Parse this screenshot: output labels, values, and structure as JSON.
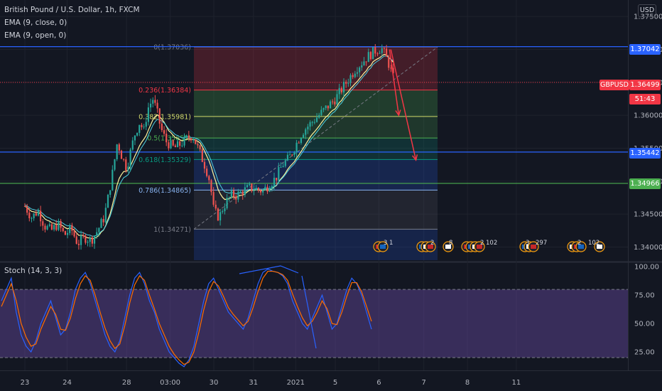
{
  "header": {
    "title": "British Pound / U.S. Dollar, 1h, FXCM",
    "indicators": [
      "EMA (9, close, 0)",
      "EMA (9, open, 0)"
    ],
    "currency": "USD"
  },
  "badges": {
    "price_line_1": "1.37042",
    "symbol": "GBPUSD",
    "last_price": "1.36499",
    "countdown": "51:43",
    "price_line_2": "1.35442",
    "price_line_3": "1.34966"
  },
  "fib_levels": [
    {
      "label": "0(1.37036)",
      "price": 1.37036,
      "color": "#787b86"
    },
    {
      "label": "0.236(1.36384)",
      "price": 1.36384,
      "color": "#f23645"
    },
    {
      "label": "0.382(1.35981)",
      "price": 1.35981,
      "color": "#cfd86a"
    },
    {
      "label": "0.5(1.35655)",
      "price": 1.35655,
      "color": "#4caf50"
    },
    {
      "label": "0.618(1.35329)",
      "price": 1.35329,
      "color": "#089981"
    },
    {
      "label": "0.786(1.34865)",
      "price": 1.34865,
      "color": "#87b3f0"
    },
    {
      "label": "1(1.34271)",
      "price": 1.34271,
      "color": "#787b86"
    }
  ],
  "events": {
    "badge_counts": [
      "3",
      "1",
      "2",
      "8",
      "2",
      "102",
      "3",
      "297",
      "2",
      "102"
    ]
  },
  "stoch": {
    "title": "Stoch (14, 3, 3)",
    "levels": [
      80,
      20
    ]
  },
  "chart_data": [
    {
      "type": "candlestick",
      "title": "British Pound / U.S. Dollar, 1h, FXCM",
      "y_ticks": [
        "1.37500",
        "1.37000",
        "1.36500",
        "1.36000",
        "1.35500",
        "1.35000",
        "1.34500",
        "1.34000"
      ],
      "ylim": [
        1.338,
        1.3775
      ],
      "x_ticks": [
        "23",
        "24",
        "28",
        "03:00",
        "30",
        "31",
        "2021",
        "5",
        "6",
        "7",
        "8",
        "11"
      ],
      "horizontal_lines": [
        1.37042,
        1.35442,
        1.34966
      ],
      "last_price": 1.36499,
      "fib_levels": [
        1.37036,
        1.36384,
        1.35981,
        1.35655,
        1.35329,
        1.34865,
        1.34271
      ],
      "price_path": [
        [
          0,
          1.3462
        ],
        [
          0.5,
          1.3445
        ],
        [
          1,
          1.3455
        ],
        [
          1.5,
          1.3432
        ],
        [
          2,
          1.3425
        ],
        [
          2.5,
          1.3435
        ],
        [
          3,
          1.3418
        ],
        [
          3.5,
          1.3428
        ],
        [
          4,
          1.3405
        ],
        [
          4.5,
          1.3415
        ],
        [
          5,
          1.341
        ],
        [
          5.5,
          1.3425
        ],
        [
          6,
          1.3445
        ],
        [
          6.3,
          1.3475
        ],
        [
          6.7,
          1.352
        ],
        [
          7,
          1.356
        ],
        [
          7.3,
          1.354
        ],
        [
          7.7,
          1.352
        ],
        [
          8,
          1.3545
        ],
        [
          8.3,
          1.357
        ],
        [
          8.7,
          1.359
        ],
        [
          9,
          1.3575
        ],
        [
          9.3,
          1.361
        ],
        [
          9.7,
          1.3625
        ],
        [
          10,
          1.3605
        ],
        [
          10.3,
          1.358
        ],
        [
          10.7,
          1.356
        ],
        [
          11,
          1.3555
        ],
        [
          11.3,
          1.355
        ],
        [
          11.7,
          1.3555
        ],
        [
          12,
          1.356
        ],
        [
          12.3,
          1.3565
        ],
        [
          12.7,
          1.357
        ],
        [
          13,
          1.3555
        ],
        [
          13.3,
          1.354
        ],
        [
          13.7,
          1.352
        ],
        [
          14,
          1.35
        ],
        [
          14.3,
          1.3455
        ],
        [
          14.7,
          1.3445
        ],
        [
          15,
          1.346
        ],
        [
          15.3,
          1.347
        ],
        [
          15.7,
          1.348
        ],
        [
          16,
          1.3478
        ],
        [
          16.5,
          1.3485
        ],
        [
          17,
          1.349
        ],
        [
          17.5,
          1.3488
        ],
        [
          18,
          1.3485
        ],
        [
          18.5,
          1.3495
        ],
        [
          19,
          1.3505
        ],
        [
          19.5,
          1.3525
        ],
        [
          20,
          1.3535
        ],
        [
          20.5,
          1.3555
        ],
        [
          21,
          1.3575
        ],
        [
          21.5,
          1.3585
        ],
        [
          22,
          1.3595
        ],
        [
          22.5,
          1.3605
        ],
        [
          23,
          1.3615
        ],
        [
          23.5,
          1.3625
        ],
        [
          24,
          1.364
        ],
        [
          24.5,
          1.3655
        ],
        [
          25,
          1.367
        ],
        [
          25.5,
          1.368
        ],
        [
          26,
          1.369
        ],
        [
          26.5,
          1.3698
        ],
        [
          27,
          1.3702
        ],
        [
          27.3,
          1.369
        ],
        [
          27.6,
          1.3675
        ],
        [
          27.9,
          1.3655
        ]
      ],
      "x_day_ticks_index": [
        0,
        3.2,
        7.7,
        11,
        14.3,
        17.3,
        20.5,
        23.5,
        26.8,
        30.2,
        33.5,
        37.2
      ],
      "forecast_arrows": [
        {
          "from": [
            27.6,
            1.37
          ],
          "to": [
            28.3,
            1.36
          ]
        },
        {
          "from": [
            27.7,
            1.37
          ],
          "to": [
            29.6,
            1.3532
          ]
        }
      ]
    },
    {
      "type": "line",
      "title": "Stoch (14, 3, 3)",
      "y_ticks": [
        "100.00",
        "75.00",
        "50.00",
        "25.00"
      ],
      "ylim": [
        10,
        102
      ],
      "bands": [
        80,
        20
      ],
      "series": [
        {
          "color": "#2962ff",
          "values": [
            70,
            80,
            90,
            60,
            40,
            30,
            25,
            35,
            50,
            60,
            70,
            55,
            40,
            45,
            60,
            80,
            90,
            95,
            85,
            70,
            55,
            40,
            30,
            25,
            35,
            55,
            75,
            90,
            95,
            85,
            70,
            60,
            45,
            35,
            25,
            20,
            15,
            12,
            18,
            30,
            50,
            70,
            85,
            90,
            80,
            70,
            60,
            55,
            50,
            45,
            55,
            70,
            85,
            95,
            98,
            96,
            95,
            92,
            85,
            70,
            60,
            50,
            45,
            55,
            65,
            75,
            60,
            45,
            50,
            65,
            80,
            90,
            85,
            75,
            60,
            45
          ]
        },
        {
          "color": "#ff6d00",
          "values": [
            65,
            75,
            85,
            70,
            50,
            38,
            30,
            32,
            45,
            55,
            65,
            58,
            45,
            44,
            55,
            72,
            85,
            92,
            88,
            75,
            60,
            46,
            35,
            28,
            32,
            48,
            68,
            84,
            92,
            88,
            75,
            63,
            50,
            40,
            30,
            23,
            18,
            14,
            16,
            25,
            42,
            62,
            78,
            87,
            83,
            74,
            64,
            58,
            53,
            48,
            52,
            64,
            78,
            90,
            96,
            96,
            95,
            93,
            88,
            76,
            65,
            55,
            48,
            52,
            60,
            70,
            63,
            50,
            49,
            60,
            74,
            86,
            86,
            78,
            65,
            52
          ]
        }
      ]
    }
  ]
}
